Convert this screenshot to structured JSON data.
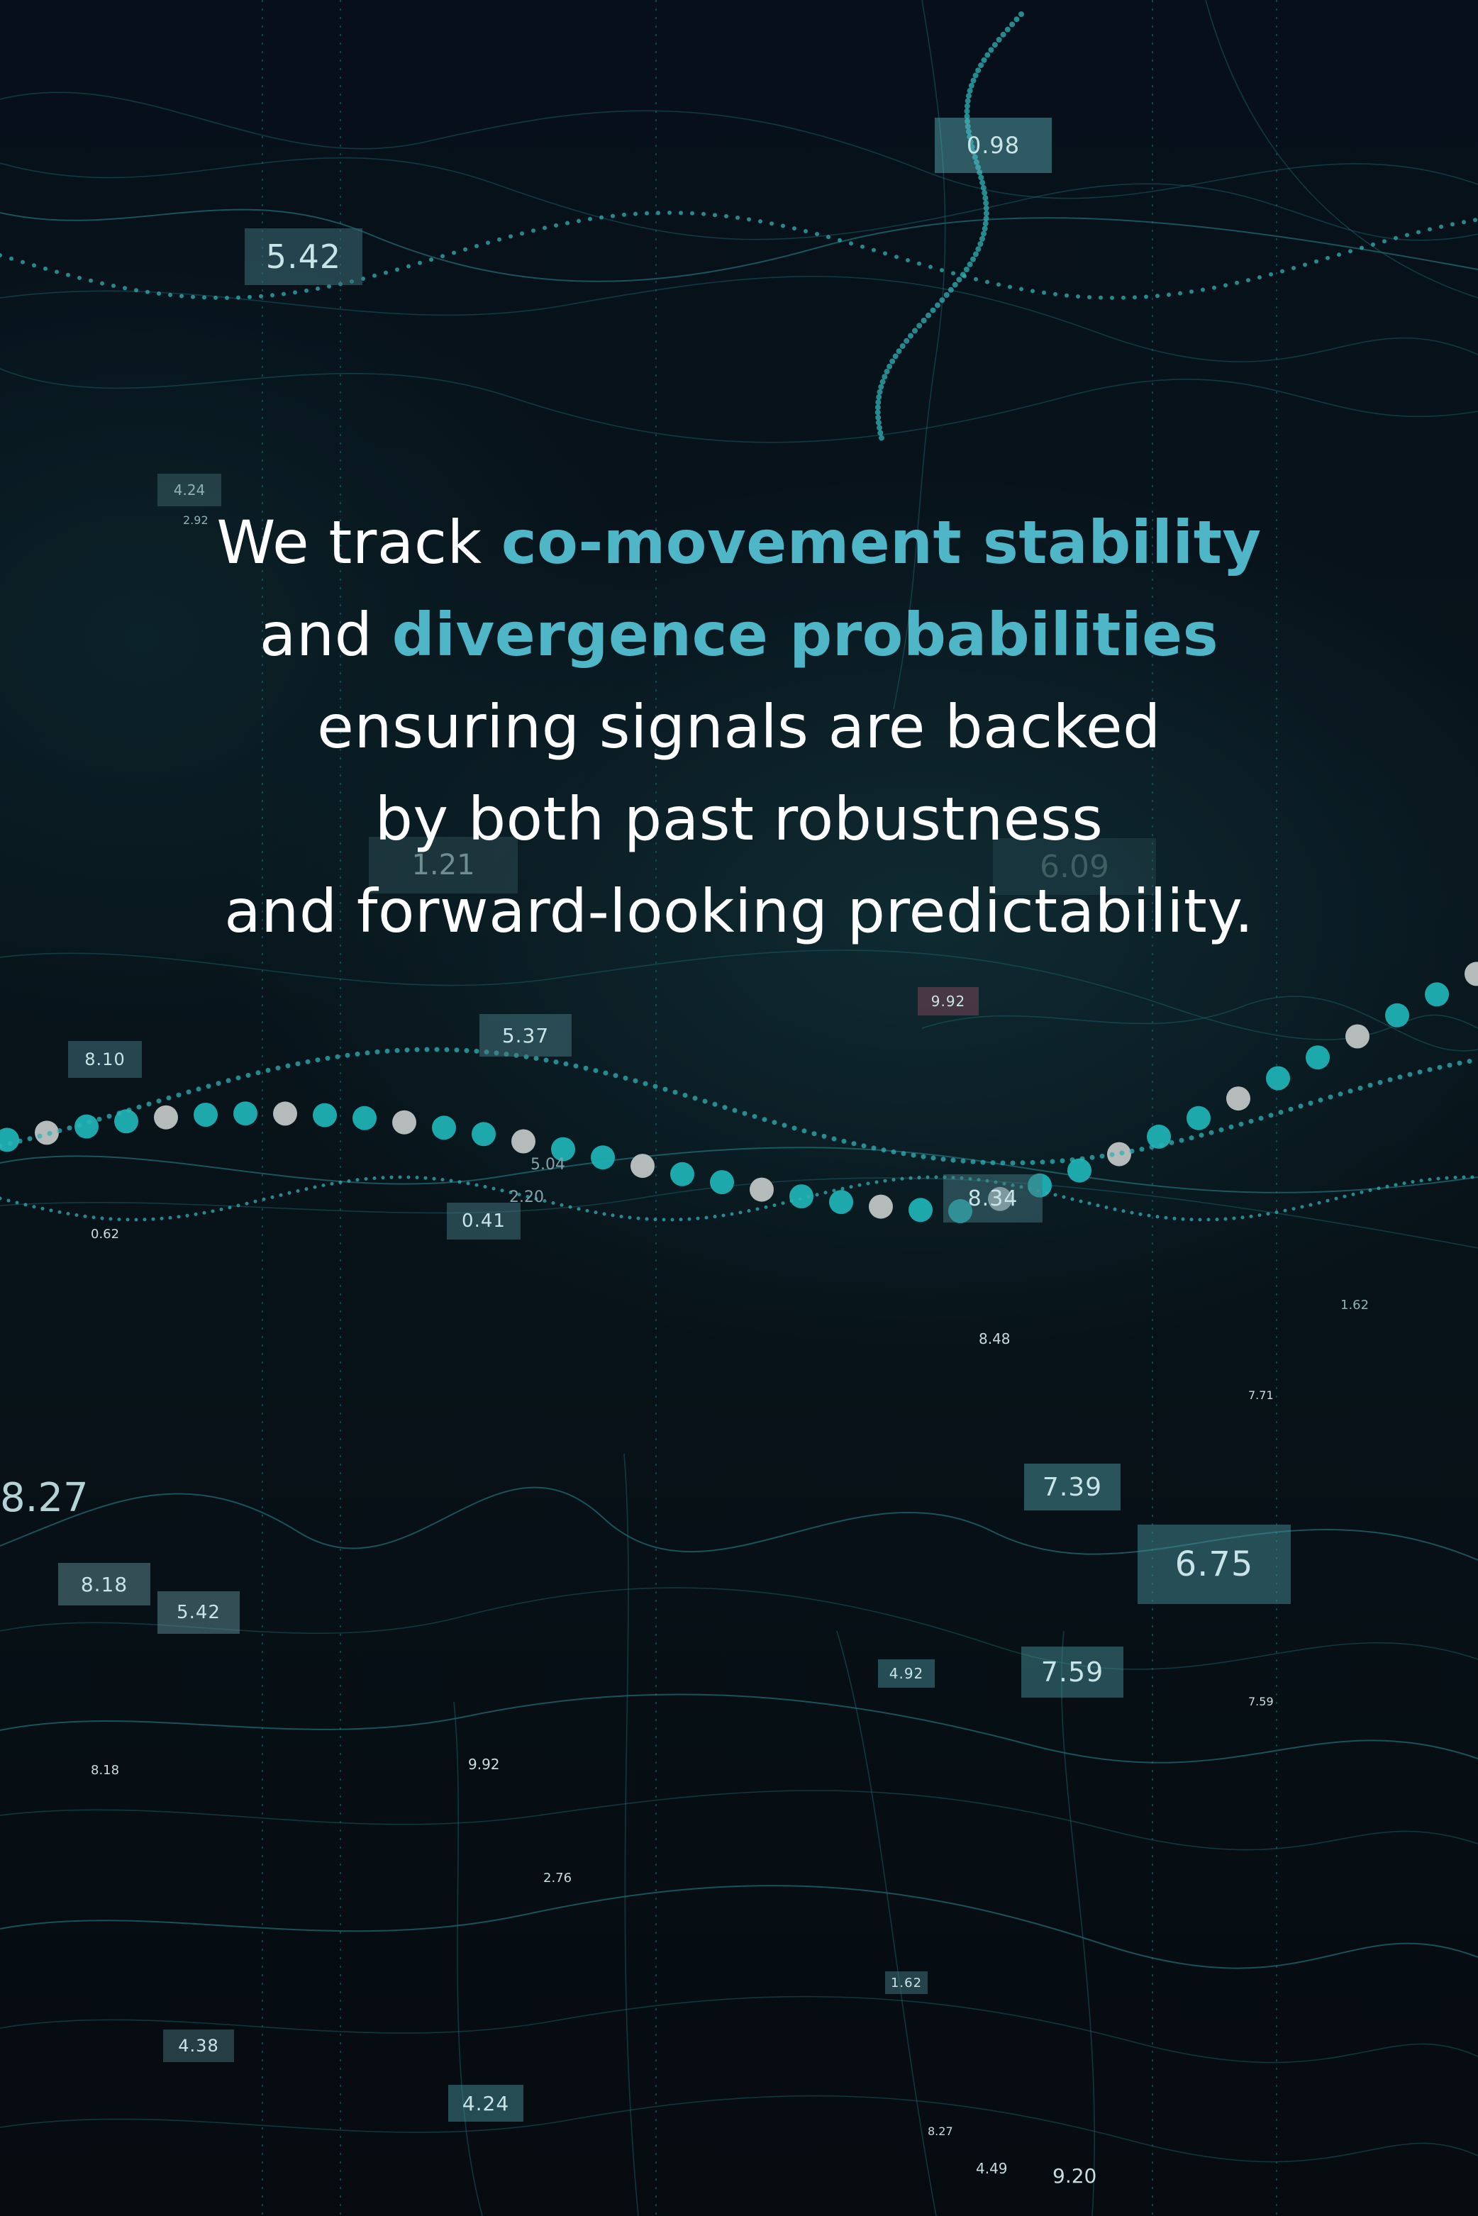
{
  "headline": {
    "line1_pre": "We track ",
    "line1_highlight": "co-movement stability",
    "line2_pre": "and ",
    "line2_highlight": "divergence probabilities",
    "line3": "ensuring signals are backed",
    "line4": "by both past robustness",
    "line5": "and forward-looking predictability."
  },
  "colors": {
    "background": "#070b10",
    "highlight": "#4fb6c8",
    "text": "#ffffff",
    "accent": "#2fb3b6"
  },
  "value_labels": {
    "v0_98": "0.98",
    "v5_42_top": "5.42",
    "v4_24_top": "4.24",
    "v2_92": "2.92",
    "v1_21": "1.21",
    "v6_09": "6.09",
    "v8_10": "8.10",
    "v5_37": "5.37",
    "v9_92_mid": "9.92",
    "v0_62": "0.62",
    "v0_41": "0.41",
    "v5_04": "5.04",
    "v2_20": "2.20",
    "v8_34": "8.34",
    "v8_48": "8.48",
    "v7_71": "7.71",
    "v1_62_mid": "1.62",
    "v8_27": "8.27",
    "v8_18_box": "8.18",
    "v5_42_box": "5.42",
    "v7_39": "7.39",
    "v6_75": "6.75",
    "v4_92": "4.92",
    "v7_59_box": "7.59",
    "v7_59_small": "7.59",
    "v8_18_small": "8.18",
    "v9_92_low": "9.92",
    "v2_76": "2.76",
    "v1_62_low": "1.62",
    "v4_38": "4.38",
    "v4_24_low": "4.24",
    "v8_27_small": "8.27",
    "v4_49": "4.49",
    "v9_20": "9.20"
  }
}
